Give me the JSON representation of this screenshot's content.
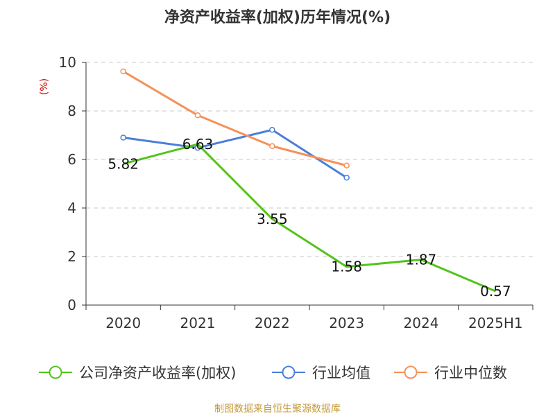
{
  "chart_data": {
    "type": "line",
    "title": "净资产收益率(加权)历年情况(%)",
    "ylabel": "(%)",
    "xlabel": "",
    "categories": [
      "2020",
      "2021",
      "2022",
      "2023",
      "2024",
      "2025H1"
    ],
    "ylim": [
      0,
      10
    ],
    "yticks": [
      0,
      2,
      4,
      6,
      8,
      10
    ],
    "grid": true,
    "legend_position": "bottom",
    "series": [
      {
        "name": "公司净资产收益率(加权)",
        "color": "#52c41a",
        "values": [
          5.82,
          6.63,
          3.55,
          1.58,
          1.87,
          0.57
        ],
        "labels": [
          "5.82",
          "6.63",
          "3.55",
          "1.58",
          "1.87",
          "0.57"
        ]
      },
      {
        "name": "行业均值",
        "color": "#4a7fd8",
        "values": [
          6.9,
          6.48,
          7.22,
          5.25,
          null,
          null
        ]
      },
      {
        "name": "行业中位数",
        "color": "#f5905a",
        "values": [
          9.63,
          7.82,
          6.55,
          5.75,
          null,
          null
        ]
      }
    ]
  },
  "footer": {
    "source": "制图数据来自恒生聚源数据库"
  }
}
